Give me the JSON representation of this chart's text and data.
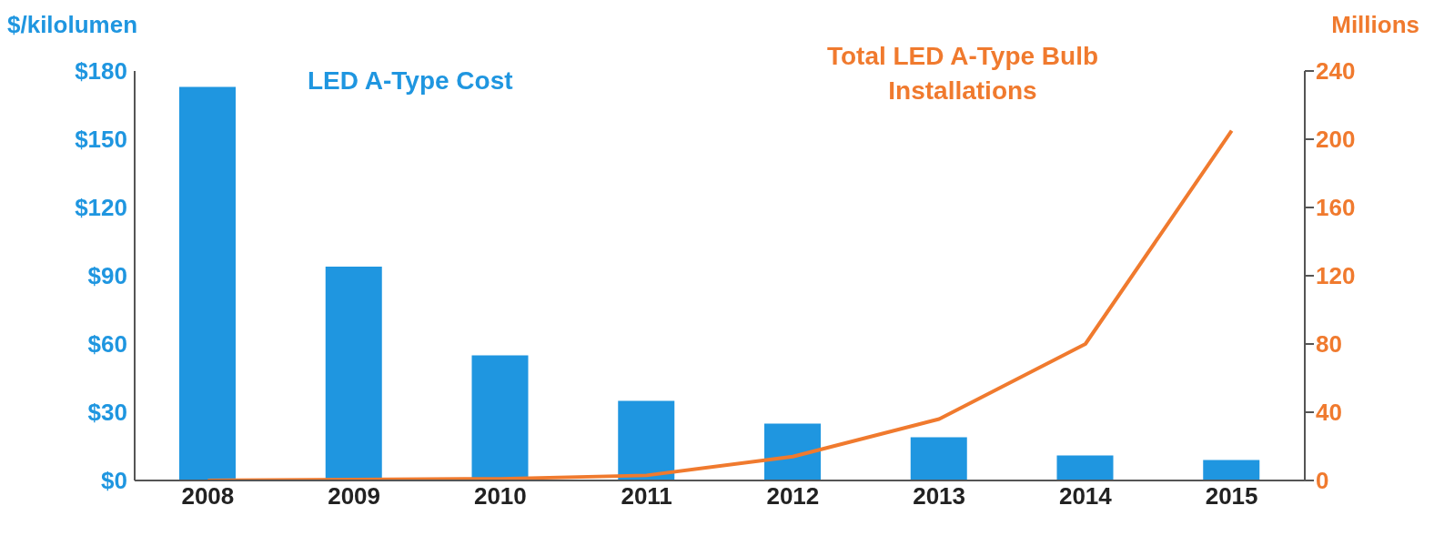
{
  "chart_data": {
    "type": "bar",
    "ylabel": "$/kilolumen",
    "y2label": "Millions",
    "categories": [
      "2008",
      "2009",
      "2010",
      "2011",
      "2012",
      "2013",
      "2014",
      "2015"
    ],
    "series": [
      {
        "name": "LED A-Type Cost",
        "color": "#1f96e0",
        "values": [
          173,
          94,
          55,
          35,
          25,
          19,
          11,
          9
        ]
      },
      {
        "name": "Total LED A-Type Bulb Installations",
        "type": "line",
        "axis": "y2",
        "color": "#f07a2e",
        "values": [
          0,
          0.5,
          1,
          3,
          14,
          36,
          80,
          205
        ]
      }
    ],
    "ylim": [
      0,
      180
    ],
    "yticks": [
      {
        "value": 0,
        "label": "$0"
      },
      {
        "value": 30,
        "label": "$30"
      },
      {
        "value": 60,
        "label": "$60"
      },
      {
        "value": 90,
        "label": "$90"
      },
      {
        "value": 120,
        "label": "$120"
      },
      {
        "value": 150,
        "label": "$150"
      },
      {
        "value": 180,
        "label": "$180"
      }
    ],
    "y2lim": [
      0,
      240
    ],
    "y2ticks": [
      0,
      40,
      80,
      120,
      160,
      200,
      240
    ],
    "grid": false,
    "legend": false,
    "marker": "none",
    "line_style": "solid"
  }
}
